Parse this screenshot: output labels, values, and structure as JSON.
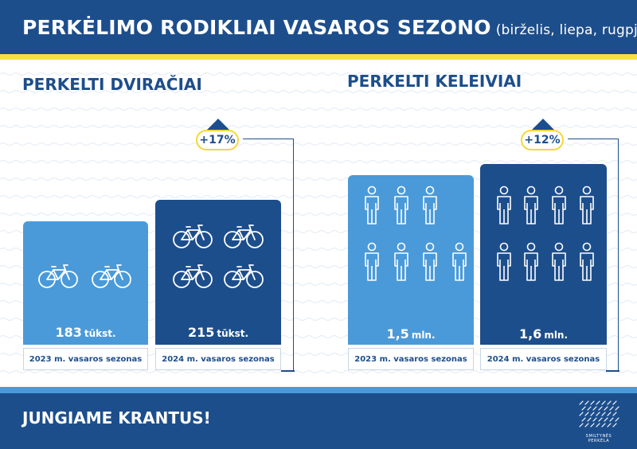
{
  "header": {
    "title": "PERKĖLIMO RODIKLIAI VASAROS SEZONO",
    "subtitle": "(birželis, liepa, rugpjūtis)"
  },
  "colors": {
    "primary": "#1d4e8c",
    "secondary": "#4a9ad9",
    "accent": "#f5d83a",
    "light": "#ffffff"
  },
  "chart_data": [
    {
      "type": "bar",
      "title": "PERKELTI DVIRAČIAI",
      "categories": [
        "2023 m. vasaros sezonas",
        "2024 m. vasaros sezonas"
      ],
      "values": [
        183,
        215
      ],
      "value_labels": [
        "183",
        "215"
      ],
      "unit": "tūkst.",
      "ylim": [
        0,
        215
      ],
      "change_label": "+17%",
      "pictogram": "bicycle-icon",
      "pictogram_counts": [
        2,
        4
      ]
    },
    {
      "type": "bar",
      "title": "PERKELTI KELEIVIAI",
      "categories": [
        "2023 m. vasaros sezonas",
        "2024 m. vasaros sezonas"
      ],
      "values": [
        1.5,
        1.6
      ],
      "value_labels": [
        "1,5",
        "1,6"
      ],
      "unit": "mln.",
      "ylim": [
        0,
        1.6
      ],
      "change_label": "+12%",
      "pictogram": "person-icon",
      "pictogram_counts": [
        7,
        8
      ]
    }
  ],
  "footer": {
    "slogan": "JUNGIAME KRANTUS!",
    "logo_line1": "SMILTYNĖS",
    "logo_line2": "PERKĖLA"
  }
}
